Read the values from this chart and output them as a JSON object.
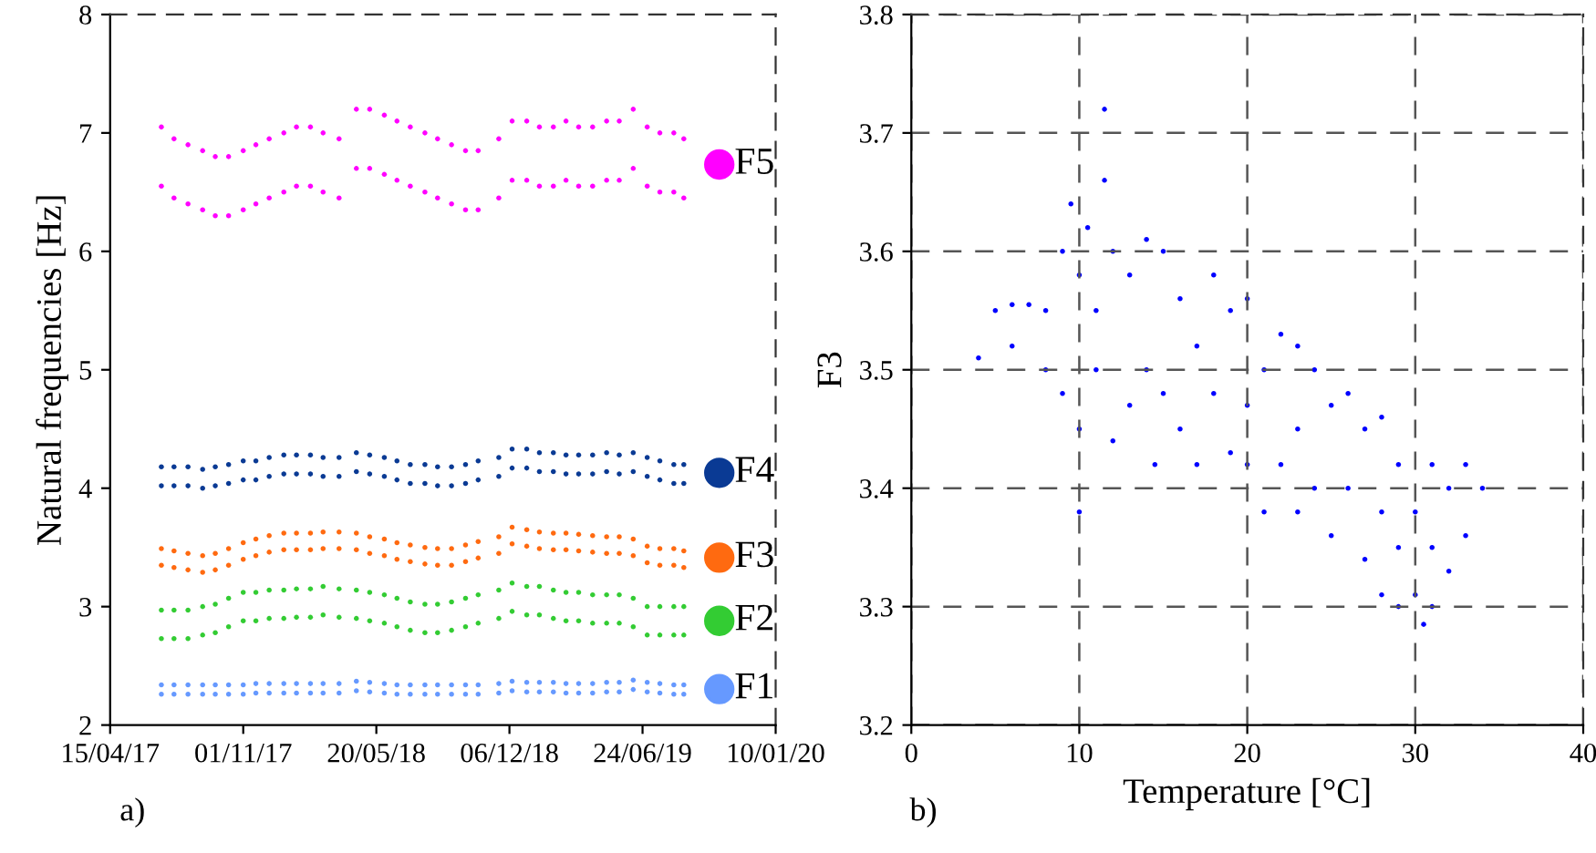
{
  "chart_data": [
    {
      "type": "scatter",
      "ylabel": "Natural frequencies [Hz]",
      "annotations": [
        "a)"
      ],
      "x": [
        "2017-07-01",
        "2017-07-01",
        "2017-07-20",
        "2017-07-20",
        "2017-08-10",
        "2017-08-10",
        "2017-09-01",
        "2017-09-01",
        "2017-09-20",
        "2017-09-20",
        "2017-10-10",
        "2017-10-10",
        "2017-11-01",
        "2017-11-01",
        "2017-11-20",
        "2017-11-20",
        "2017-12-10",
        "2017-12-10",
        "2018-01-01",
        "2018-01-01",
        "2018-01-20",
        "2018-01-20",
        "2018-02-10",
        "2018-02-10",
        "2018-03-01",
        "2018-03-01",
        "2018-03-25",
        "2018-03-25",
        "2018-04-20",
        "2018-04-20",
        "2018-05-10",
        "2018-05-10",
        "2018-06-01",
        "2018-06-01",
        "2018-06-20",
        "2018-06-20",
        "2018-07-10",
        "2018-07-10",
        "2018-08-01",
        "2018-08-01",
        "2018-08-20",
        "2018-08-20",
        "2018-09-10",
        "2018-09-10",
        "2018-10-01",
        "2018-10-01",
        "2018-10-20",
        "2018-10-20",
        "2018-11-20",
        "2018-11-20",
        "2018-12-10",
        "2018-12-10",
        "2019-01-01",
        "2019-01-01",
        "2019-01-20",
        "2019-01-20",
        "2019-02-10",
        "2019-02-10",
        "2019-03-01",
        "2019-03-01",
        "2019-03-20",
        "2019-03-20",
        "2019-04-10",
        "2019-04-10",
        "2019-05-01",
        "2019-05-01",
        "2019-05-20",
        "2019-05-20",
        "2019-06-10",
        "2019-06-10",
        "2019-07-01",
        "2019-07-01",
        "2019-07-20",
        "2019-07-20",
        "2019-08-10",
        "2019-08-10",
        "2019-08-25",
        "2019-08-25"
      ],
      "xlim": [
        "2017-04-15",
        "2020-01-10"
      ],
      "xticks": [
        {
          "value": "2017-04-15",
          "label": "15/04/17"
        },
        {
          "value": "2017-11-01",
          "label": "01/11/17"
        },
        {
          "value": "2018-05-20",
          "label": "20/05/18"
        },
        {
          "value": "2018-12-06",
          "label": "06/12/18"
        },
        {
          "value": "2019-06-24",
          "label": "24/06/19"
        },
        {
          "value": "2020-01-10",
          "label": "10/01/20"
        }
      ],
      "ylim": [
        2,
        8
      ],
      "yticks": [
        2,
        3,
        4,
        5,
        6,
        7,
        8
      ],
      "grid": false,
      "legend": "right",
      "series": [
        {
          "name": "F5",
          "color": "#ff00ff",
          "values": [
            6.55,
            7.05,
            6.45,
            6.95,
            6.4,
            6.9,
            6.35,
            6.85,
            6.3,
            6.8,
            6.3,
            6.8,
            6.35,
            6.85,
            6.4,
            6.9,
            6.45,
            6.95,
            6.5,
            7.0,
            6.55,
            7.05,
            6.55,
            7.05,
            6.5,
            7.0,
            6.45,
            6.95,
            6.7,
            7.2,
            6.7,
            7.2,
            6.65,
            7.15,
            6.6,
            7.1,
            6.55,
            7.05,
            6.5,
            7.0,
            6.45,
            6.95,
            6.4,
            6.9,
            6.35,
            6.85,
            6.35,
            6.85,
            6.45,
            6.95,
            6.6,
            7.1,
            6.6,
            7.1,
            6.55,
            7.05,
            6.55,
            7.05,
            6.6,
            7.1,
            6.55,
            7.05,
            6.55,
            7.05,
            6.6,
            7.1,
            6.6,
            7.1,
            6.7,
            7.2,
            6.55,
            7.05,
            6.5,
            7.0,
            6.5,
            7.0,
            6.45,
            6.95
          ]
        },
        {
          "name": "F4",
          "color": "#0a3a94",
          "values": [
            4.02,
            4.18,
            4.02,
            4.18,
            4.02,
            4.18,
            4.0,
            4.16,
            4.02,
            4.18,
            4.04,
            4.2,
            4.07,
            4.23,
            4.07,
            4.23,
            4.1,
            4.26,
            4.12,
            4.28,
            4.12,
            4.28,
            4.12,
            4.28,
            4.1,
            4.26,
            4.1,
            4.26,
            4.14,
            4.3,
            4.12,
            4.28,
            4.1,
            4.26,
            4.07,
            4.23,
            4.04,
            4.2,
            4.04,
            4.2,
            4.02,
            4.18,
            4.02,
            4.18,
            4.04,
            4.2,
            4.07,
            4.23,
            4.1,
            4.26,
            4.17,
            4.33,
            4.17,
            4.33,
            4.14,
            4.3,
            4.14,
            4.3,
            4.12,
            4.28,
            4.12,
            4.28,
            4.12,
            4.28,
            4.14,
            4.3,
            4.12,
            4.28,
            4.14,
            4.3,
            4.1,
            4.26,
            4.07,
            4.23,
            4.04,
            4.2,
            4.04,
            4.2
          ]
        },
        {
          "name": "F3",
          "color": "#ff6a10",
          "values": [
            3.35,
            3.49,
            3.33,
            3.47,
            3.31,
            3.45,
            3.29,
            3.43,
            3.31,
            3.45,
            3.35,
            3.49,
            3.4,
            3.54,
            3.43,
            3.57,
            3.46,
            3.6,
            3.48,
            3.62,
            3.48,
            3.62,
            3.48,
            3.62,
            3.49,
            3.63,
            3.49,
            3.63,
            3.48,
            3.62,
            3.45,
            3.59,
            3.43,
            3.57,
            3.4,
            3.54,
            3.38,
            3.52,
            3.36,
            3.5,
            3.35,
            3.49,
            3.35,
            3.49,
            3.38,
            3.52,
            3.41,
            3.55,
            3.45,
            3.59,
            3.53,
            3.67,
            3.51,
            3.65,
            3.49,
            3.63,
            3.48,
            3.62,
            3.48,
            3.62,
            3.47,
            3.61,
            3.46,
            3.6,
            3.45,
            3.59,
            3.45,
            3.59,
            3.43,
            3.57,
            3.37,
            3.51,
            3.35,
            3.49,
            3.35,
            3.49,
            3.33,
            3.47
          ]
        },
        {
          "name": "F2",
          "color": "#33cc33",
          "values": [
            2.73,
            2.97,
            2.73,
            2.97,
            2.73,
            2.97,
            2.76,
            3.0,
            2.78,
            3.02,
            2.83,
            3.07,
            2.88,
            3.12,
            2.88,
            3.12,
            2.9,
            3.14,
            2.9,
            3.14,
            2.91,
            3.15,
            2.91,
            3.15,
            2.93,
            3.17,
            2.91,
            3.15,
            2.9,
            3.14,
            2.88,
            3.12,
            2.86,
            3.1,
            2.83,
            3.07,
            2.8,
            3.04,
            2.78,
            3.02,
            2.78,
            3.02,
            2.8,
            3.04,
            2.83,
            3.07,
            2.86,
            3.1,
            2.9,
            3.14,
            2.96,
            3.2,
            2.93,
            3.17,
            2.93,
            3.17,
            2.9,
            3.14,
            2.88,
            3.12,
            2.88,
            3.12,
            2.86,
            3.1,
            2.86,
            3.1,
            2.86,
            3.1,
            2.83,
            3.07,
            2.76,
            3.0,
            2.76,
            3.0,
            2.76,
            3.0,
            2.76,
            3.0
          ]
        },
        {
          "name": "F1",
          "color": "#6699ff",
          "values": [
            2.26,
            2.34,
            2.26,
            2.34,
            2.26,
            2.34,
            2.26,
            2.34,
            2.26,
            2.34,
            2.26,
            2.34,
            2.26,
            2.34,
            2.27,
            2.35,
            2.27,
            2.35,
            2.27,
            2.35,
            2.27,
            2.35,
            2.27,
            2.35,
            2.27,
            2.35,
            2.27,
            2.35,
            2.29,
            2.37,
            2.28,
            2.36,
            2.27,
            2.35,
            2.26,
            2.34,
            2.26,
            2.34,
            2.26,
            2.34,
            2.26,
            2.34,
            2.26,
            2.34,
            2.26,
            2.34,
            2.26,
            2.34,
            2.27,
            2.35,
            2.29,
            2.37,
            2.28,
            2.36,
            2.28,
            2.36,
            2.28,
            2.36,
            2.27,
            2.35,
            2.27,
            2.35,
            2.27,
            2.35,
            2.28,
            2.36,
            2.28,
            2.36,
            2.3,
            2.38,
            2.28,
            2.36,
            2.27,
            2.35,
            2.26,
            2.34,
            2.26,
            2.34
          ]
        }
      ]
    },
    {
      "type": "scatter",
      "xlabel": "Temperature [°C]",
      "ylabel": "F3",
      "annotations": [
        "b)"
      ],
      "x": [
        4,
        5,
        6,
        7,
        8,
        6,
        8,
        9,
        9,
        9.5,
        10,
        10,
        10,
        10.5,
        11,
        11,
        11.5,
        11.5,
        12,
        12,
        13,
        13,
        14,
        14,
        14.5,
        15,
        15,
        16,
        16,
        17,
        17,
        18,
        18,
        19,
        19,
        20,
        20,
        20,
        21,
        21,
        22,
        22,
        23,
        23,
        23,
        24,
        24,
        25,
        25,
        26,
        26,
        27,
        27,
        28,
        28,
        28,
        29,
        29,
        29,
        30,
        30,
        30.5,
        31,
        31,
        31,
        32,
        32,
        33,
        33,
        34
      ],
      "xlim": [
        0,
        40
      ],
      "xticks": [
        0,
        10,
        20,
        30,
        40
      ],
      "ylim": [
        3.2,
        3.8
      ],
      "yticks": [
        3.2,
        3.3,
        3.4,
        3.5,
        3.6,
        3.7,
        3.8
      ],
      "grid": true,
      "series": [
        {
          "color": "#0000ff",
          "values": [
            3.51,
            3.55,
            3.555,
            3.555,
            3.55,
            3.52,
            3.5,
            3.6,
            3.48,
            3.64,
            3.58,
            3.45,
            3.38,
            3.62,
            3.55,
            3.5,
            3.72,
            3.66,
            3.6,
            3.44,
            3.58,
            3.47,
            3.61,
            3.5,
            3.42,
            3.6,
            3.48,
            3.56,
            3.45,
            3.52,
            3.42,
            3.58,
            3.48,
            3.55,
            3.43,
            3.56,
            3.47,
            3.42,
            3.5,
            3.38,
            3.53,
            3.42,
            3.52,
            3.45,
            3.38,
            3.5,
            3.4,
            3.47,
            3.36,
            3.48,
            3.4,
            3.45,
            3.34,
            3.46,
            3.38,
            3.31,
            3.42,
            3.35,
            3.3,
            3.38,
            3.31,
            3.285,
            3.42,
            3.35,
            3.3,
            3.4,
            3.33,
            3.42,
            3.36,
            3.4
          ]
        }
      ]
    }
  ]
}
